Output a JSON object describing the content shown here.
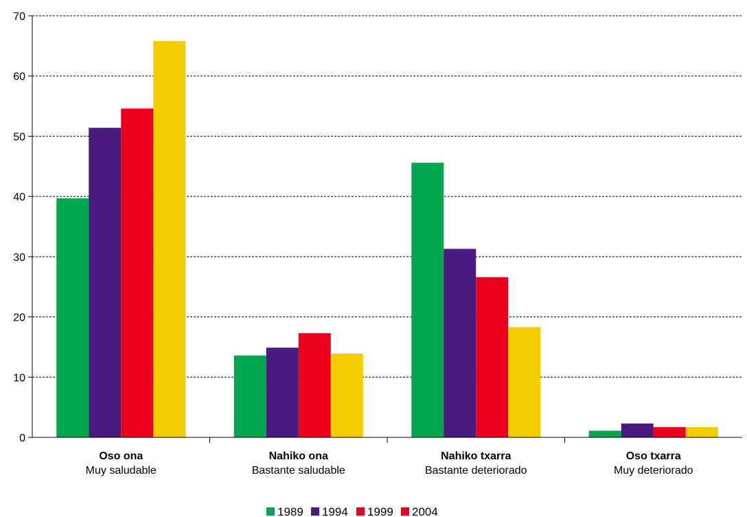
{
  "chart_data": {
    "type": "bar",
    "categories": [
      {
        "label": "Oso ona",
        "sublabel": "Muy saludable"
      },
      {
        "label": "Nahiko ona",
        "sublabel": "Bastante saludable"
      },
      {
        "label": "Nahiko txarra",
        "sublabel": "Bastante deteriorado"
      },
      {
        "label": "Oso txarra",
        "sublabel": "Muy deteriorado"
      }
    ],
    "series": [
      {
        "name": "1989",
        "color": "#00a64f",
        "legend_color": "#00a64f",
        "values": [
          39.7,
          13.6,
          45.6,
          1.1
        ]
      },
      {
        "name": "1994",
        "color": "#4b1a7e",
        "legend_color": "#4b1a7e",
        "values": [
          51.4,
          14.9,
          31.3,
          2.3
        ]
      },
      {
        "name": "1999",
        "color": "#e8001c",
        "legend_color": "#e8001c",
        "values": [
          54.6,
          17.3,
          26.6,
          1.7
        ]
      },
      {
        "name": "2004",
        "color": "#f5cc00",
        "legend_color": "#e8001c",
        "values": [
          65.8,
          13.9,
          18.3,
          1.7
        ]
      }
    ],
    "ylim": [
      0,
      70
    ],
    "yticks": [
      0,
      10,
      20,
      30,
      40,
      50,
      60,
      70
    ],
    "grid": true,
    "legend_position": "bottom-center",
    "title": "",
    "xlabel": "",
    "ylabel": ""
  }
}
